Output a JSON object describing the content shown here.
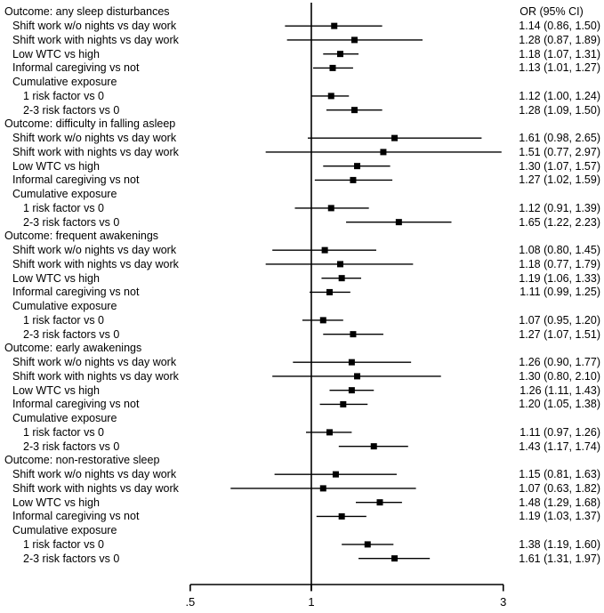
{
  "chart_data": {
    "type": "forest",
    "or_header": "OR (95% CI)",
    "axis": {
      "scale": "log",
      "ref_value": 1,
      "ticks": [
        {
          "label": ".5",
          "value": 0.5
        },
        {
          "label": "1",
          "value": 1
        },
        {
          "label": "3",
          "value": 3
        }
      ]
    },
    "row_labels_note": "indent 0 = outcome header, 1 = exposure item, 2 = cumulative sub-item",
    "sections": [
      {
        "header": "Outcome: any sleep disturbances",
        "rows": [
          {
            "label": "Shift work w/o nights vs day work",
            "indent": 1,
            "or": 1.14,
            "lo": 0.86,
            "hi": 1.5,
            "text": "1.14 (0.86, 1.50)"
          },
          {
            "label": "Shift work with nights vs day work",
            "indent": 1,
            "or": 1.28,
            "lo": 0.87,
            "hi": 1.89,
            "text": "1.28 (0.87, 1.89)"
          },
          {
            "label": "Low WTC vs high",
            "indent": 1,
            "or": 1.18,
            "lo": 1.07,
            "hi": 1.31,
            "text": "1.18 (1.07, 1.31)"
          },
          {
            "label": "Informal caregiving vs not",
            "indent": 1,
            "or": 1.13,
            "lo": 1.01,
            "hi": 1.27,
            "text": "1.13 (1.01, 1.27)"
          },
          {
            "label": "Cumulative exposure",
            "indent": 1
          },
          {
            "label": "1 risk factor vs 0",
            "indent": 2,
            "or": 1.12,
            "lo": 1.0,
            "hi": 1.24,
            "text": "1.12 (1.00, 1.24)"
          },
          {
            "label": "2-3 risk factors vs 0",
            "indent": 2,
            "or": 1.28,
            "lo": 1.09,
            "hi": 1.5,
            "text": "1.28 (1.09, 1.50)"
          }
        ]
      },
      {
        "header": "Outcome: difficulty in falling asleep",
        "rows": [
          {
            "label": "Shift work w/o nights vs day work",
            "indent": 1,
            "or": 1.61,
            "lo": 0.98,
            "hi": 2.65,
            "text": "1.61 (0.98, 2.65)"
          },
          {
            "label": "Shift work with nights vs day work",
            "indent": 1,
            "or": 1.51,
            "lo": 0.77,
            "hi": 2.97,
            "text": "1.51 (0.77, 2.97)"
          },
          {
            "label": "Low WTC vs high",
            "indent": 1,
            "or": 1.3,
            "lo": 1.07,
            "hi": 1.57,
            "text": "1.30 (1.07, 1.57)"
          },
          {
            "label": "Informal caregiving vs not",
            "indent": 1,
            "or": 1.27,
            "lo": 1.02,
            "hi": 1.59,
            "text": "1.27 (1.02, 1.59)"
          },
          {
            "label": "Cumulative exposure",
            "indent": 1
          },
          {
            "label": "1 risk factor vs 0",
            "indent": 2,
            "or": 1.12,
            "lo": 0.91,
            "hi": 1.39,
            "text": "1.12 (0.91, 1.39)"
          },
          {
            "label": "2-3 risk factors vs 0",
            "indent": 2,
            "or": 1.65,
            "lo": 1.22,
            "hi": 2.23,
            "text": "1.65 (1.22, 2.23)"
          }
        ]
      },
      {
        "header": "Outcome: frequent awakenings",
        "rows": [
          {
            "label": "Shift work w/o nights vs day work",
            "indent": 1,
            "or": 1.08,
            "lo": 0.8,
            "hi": 1.45,
            "text": "1.08 (0.80, 1.45)"
          },
          {
            "label": "Shift work with nights vs day work",
            "indent": 1,
            "or": 1.18,
            "lo": 0.77,
            "hi": 1.79,
            "text": "1.18 (0.77, 1.79)"
          },
          {
            "label": "Low WTC vs high",
            "indent": 1,
            "or": 1.19,
            "lo": 1.06,
            "hi": 1.33,
            "text": "1.19 (1.06, 1.33)"
          },
          {
            "label": "Informal caregiving vs not",
            "indent": 1,
            "or": 1.11,
            "lo": 0.99,
            "hi": 1.25,
            "text": "1.11 (0.99, 1.25)"
          },
          {
            "label": "Cumulative exposure",
            "indent": 1
          },
          {
            "label": "1 risk factor vs 0",
            "indent": 2,
            "or": 1.07,
            "lo": 0.95,
            "hi": 1.2,
            "text": "1.07 (0.95, 1.20)"
          },
          {
            "label": "2-3 risk factors vs 0",
            "indent": 2,
            "or": 1.27,
            "lo": 1.07,
            "hi": 1.51,
            "text": "1.27 (1.07, 1.51)"
          }
        ]
      },
      {
        "header": "Outcome: early awakenings",
        "rows": [
          {
            "label": "Shift work w/o nights vs day work",
            "indent": 1,
            "or": 1.26,
            "lo": 0.9,
            "hi": 1.77,
            "text": "1.26 (0.90, 1.77)"
          },
          {
            "label": "Shift work with nights vs day work",
            "indent": 1,
            "or": 1.3,
            "lo": 0.8,
            "hi": 2.1,
            "text": "1.30 (0.80, 2.10)"
          },
          {
            "label": "Low WTC vs high",
            "indent": 1,
            "or": 1.26,
            "lo": 1.11,
            "hi": 1.43,
            "text": "1.26 (1.11, 1.43)"
          },
          {
            "label": "Informal caregiving vs not",
            "indent": 1,
            "or": 1.2,
            "lo": 1.05,
            "hi": 1.38,
            "text": "1.20 (1.05, 1.38)"
          },
          {
            "label": "Cumulative exposure",
            "indent": 1
          },
          {
            "label": "1 risk factor vs 0",
            "indent": 2,
            "or": 1.11,
            "lo": 0.97,
            "hi": 1.26,
            "text": "1.11 (0.97, 1.26)"
          },
          {
            "label": "2-3 risk factors vs 0",
            "indent": 2,
            "or": 1.43,
            "lo": 1.17,
            "hi": 1.74,
            "text": "1.43 (1.17, 1.74)"
          }
        ]
      },
      {
        "header": "Outcome: non-restorative sleep",
        "rows": [
          {
            "label": "Shift work w/o nights vs day work",
            "indent": 1,
            "or": 1.15,
            "lo": 0.81,
            "hi": 1.63,
            "text": "1.15 (0.81, 1.63)"
          },
          {
            "label": "Shift work with nights vs day work",
            "indent": 1,
            "or": 1.07,
            "lo": 0.63,
            "hi": 1.82,
            "text": "1.07 (0.63, 1.82)"
          },
          {
            "label": "Low WTC vs high",
            "indent": 1,
            "or": 1.48,
            "lo": 1.29,
            "hi": 1.68,
            "text": "1.48 (1.29, 1.68)"
          },
          {
            "label": "Informal caregiving vs not",
            "indent": 1,
            "or": 1.19,
            "lo": 1.03,
            "hi": 1.37,
            "text": "1.19 (1.03, 1.37)"
          },
          {
            "label": "Cumulative exposure",
            "indent": 1
          },
          {
            "label": "1 risk factor vs 0",
            "indent": 2,
            "or": 1.38,
            "lo": 1.19,
            "hi": 1.6,
            "text": "1.38 (1.19, 1.60)"
          },
          {
            "label": "2-3 risk factors vs 0",
            "indent": 2,
            "or": 1.61,
            "lo": 1.31,
            "hi": 1.97,
            "text": "1.61 (1.31, 1.97)"
          }
        ]
      }
    ],
    "colors": {
      "foreground": "#000000",
      "background": "#ffffff"
    }
  }
}
